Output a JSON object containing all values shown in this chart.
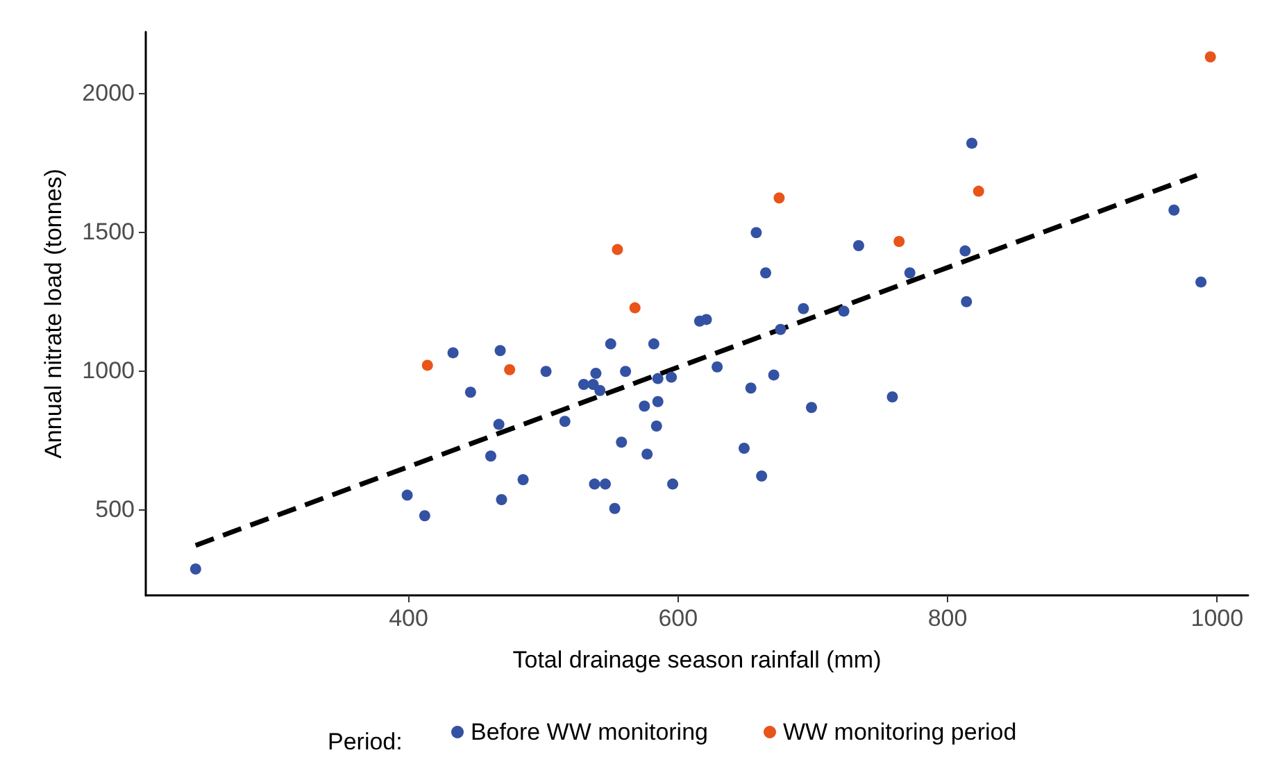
{
  "chart_data": {
    "type": "scatter",
    "xlabel": "Total drainage season rainfall (mm)",
    "ylabel": "Annual nitrate load (tonnes)",
    "legend_title": "Period:",
    "legend": "bottom",
    "grid": false,
    "marker": "circle",
    "xlim": [
      205,
      1023
    ],
    "ylim": [
      190,
      2220
    ],
    "xticks": [
      400,
      600,
      800,
      1000
    ],
    "yticks": [
      500,
      1000,
      1500,
      2000
    ],
    "series": [
      {
        "name": "Before WW monitoring",
        "color": "#3452a3",
        "x": [
          242,
          399,
          412,
          433,
          446,
          461,
          467,
          468,
          469,
          485,
          502,
          516,
          530,
          537,
          539,
          542,
          538,
          546,
          553,
          558,
          550,
          561,
          582,
          585,
          575,
          585,
          584,
          577,
          595,
          596,
          616,
          621,
          658,
          665,
          629,
          654,
          671,
          676,
          649,
          662,
          693,
          699,
          723,
          734,
          759,
          772,
          813,
          814,
          818,
          968,
          988
        ],
        "values": [
          285,
          551,
          477,
          1064,
          922,
          692,
          806,
          1072,
          535,
          607,
          997,
          817,
          950,
          950,
          990,
          928,
          591,
          591,
          503,
          742,
          1096,
          997,
          1096,
          971,
          872,
          888,
          800,
          699,
          976,
          591,
          1178,
          1184,
          1497,
          1352,
          1013,
          937,
          984,
          1148,
          720,
          620,
          1223,
          867,
          1214,
          1450,
          905,
          1352,
          1431,
          1248,
          1819,
          1578,
          1319
        ]
      },
      {
        "name": "WW monitoring period",
        "color": "#e8541a",
        "x": [
          414,
          475,
          555,
          568,
          675,
          764,
          823,
          995
        ],
        "values": [
          1019,
          1003,
          1436,
          1226,
          1622,
          1465,
          1646,
          2130
        ]
      },
      {
        "type": "line",
        "color": "#000000",
        "line_style": "dashed",
        "marker": "none",
        "x": [
          242,
          985
        ],
        "values": [
          370,
          1703
        ]
      }
    ]
  }
}
